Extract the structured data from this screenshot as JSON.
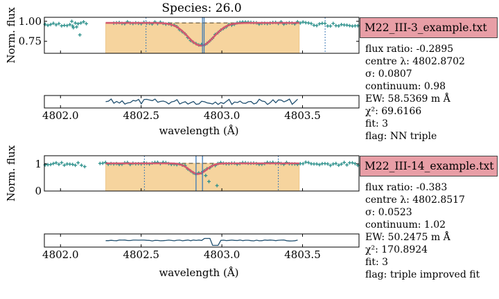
{
  "title": "Species: 26.0",
  "colors": {
    "fill": "#f6d49e",
    "fit_line": "#d2586e",
    "data_points": "#2a8f8a",
    "vertical_marker": "#3c78b4",
    "label_box": "#e89ea6"
  },
  "panels": [
    {
      "label": "M22_III-3_example.txt",
      "info_lines": [
        "flux ratio: -0.2895",
        "centre λ: 4802.8702",
        "σ: 0.0807",
        "continuum: 0.98",
        "EW: 58.5369 m Å",
        "χ²: 69.6166",
        "fit: 3",
        "flag: NN triple"
      ]
    },
    {
      "label": "M22_III-14_example.txt",
      "info_lines": [
        "flux ratio: -0.383",
        "centre λ: 4802.8517",
        "σ: 0.0523",
        "continuum: 1.02",
        "EW: 50.2475 m Å",
        "χ²: 170.8924",
        "fit: 3",
        "flag: triple improved fit"
      ]
    }
  ],
  "chart_data": [
    {
      "type": "scatter",
      "title": "Species: 26.0",
      "ylabel": "Norm. flux",
      "xlabel": "wavelength (Å)",
      "xlim": [
        4801.9,
        4803.85
      ],
      "ylim": [
        0.6,
        1.05
      ],
      "yticks": [
        "1.00",
        "0.75"
      ],
      "xticks": [
        "4802.0",
        "4802.5",
        "4803.0",
        "4803.5"
      ],
      "continuum": 0.98,
      "fit_region": [
        4802.28,
        4803.48
      ],
      "fit_centre": 4802.8702,
      "fit_sigma": 0.0807,
      "fit_depth": 0.2895,
      "vlines": [
        4802.88,
        4802.89
      ],
      "dotted_lines": [
        4802.53,
        4803.64
      ],
      "gap": [
        4802.17,
        4802.32
      ],
      "extra_points": [
        {
          "x": 4802.07,
          "y": 1.0
        },
        {
          "x": 4802.1,
          "y": 0.93
        },
        {
          "x": 4802.12,
          "y": 0.83
        },
        {
          "x": 4802.08,
          "y": 0.92
        }
      ]
    },
    {
      "type": "scatter",
      "ylabel": "Norm. flux",
      "xlabel": "wavelength (Å)",
      "xlim": [
        4801.9,
        4803.85
      ],
      "ylim": [
        0.0,
        1.3
      ],
      "yticks": [
        "1",
        "0"
      ],
      "xticks": [
        "4802.0",
        "4802.5",
        "4803.0",
        "4803.5"
      ],
      "continuum": 1.02,
      "fit_region": [
        4802.28,
        4803.48
      ],
      "fit_centre": 4802.8517,
      "fit_sigma": 0.0523,
      "fit_depth": 0.383,
      "vlines": [
        4802.84,
        4802.88
      ],
      "dotted_lines": [
        4802.52,
        4803.35
      ],
      "gap": [
        4802.12,
        4802.24
      ],
      "extra_points": [
        {
          "x": 4802.9,
          "y": 0.57
        },
        {
          "x": 4802.92,
          "y": 0.35
        },
        {
          "x": 4802.97,
          "y": 0.2
        },
        {
          "x": 4802.13,
          "y": 0.95
        },
        {
          "x": 4802.15,
          "y": 0.9
        }
      ]
    }
  ]
}
